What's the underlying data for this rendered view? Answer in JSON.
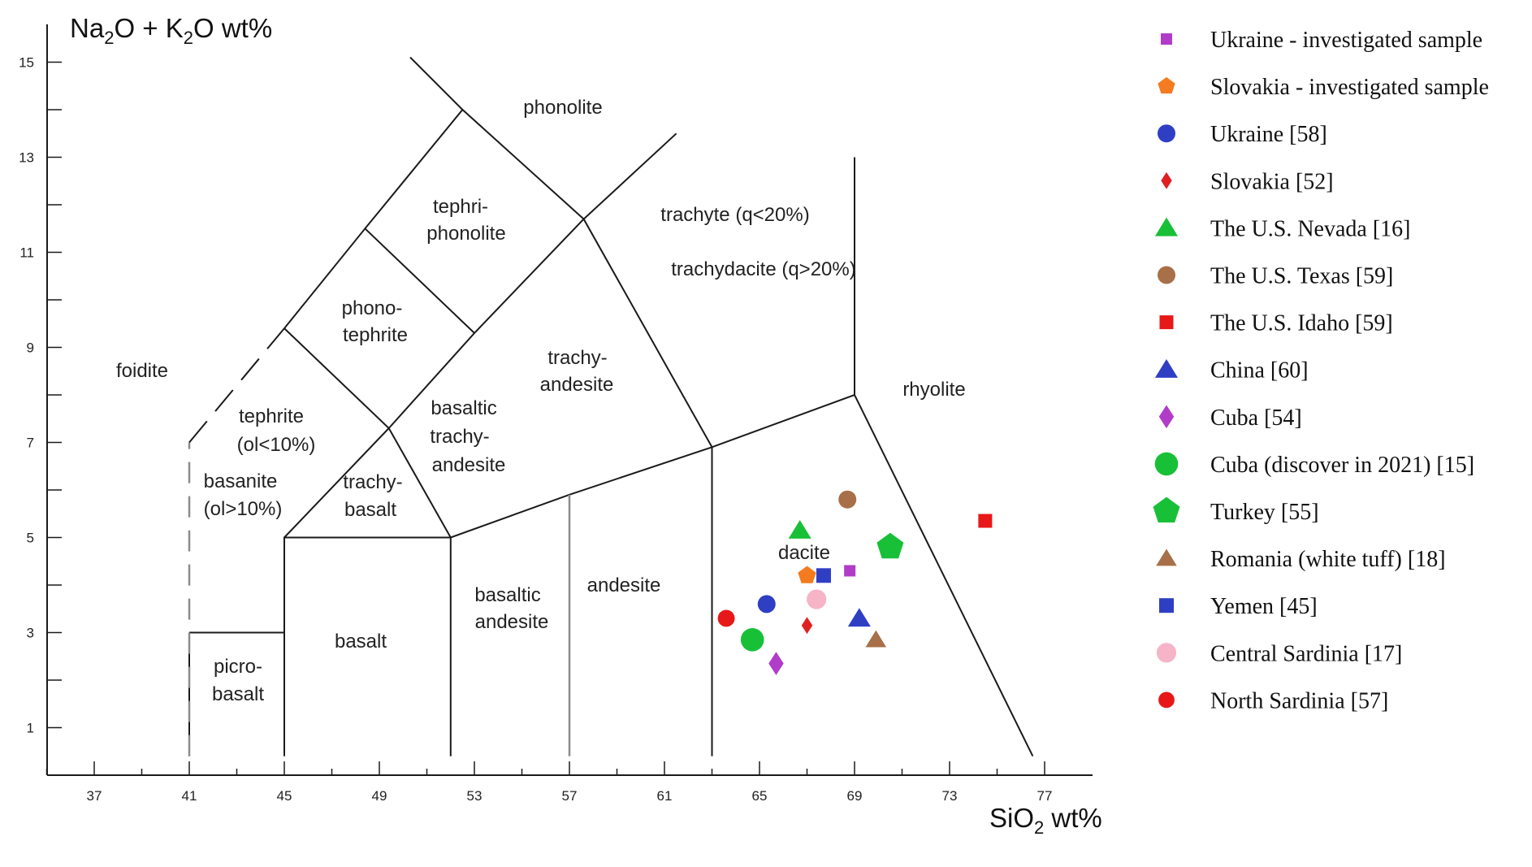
{
  "chart_data": {
    "type": "scatter",
    "title": "",
    "xlabel": "SiO2 wt%",
    "ylabel": "Na2O + K2O wt%",
    "xlim": [
      33,
      80
    ],
    "ylim": [
      0,
      16
    ],
    "x_ticks": [
      "37",
      "41",
      "45",
      "49",
      "53",
      "57",
      "61",
      "65",
      "69",
      "73",
      "77"
    ],
    "y_ticks": [
      "1",
      "3",
      "5",
      "7",
      "9",
      "11",
      "13",
      "15"
    ],
    "axis_title_parts": {
      "y": [
        {
          "t": "Na"
        },
        {
          "t": "2",
          "sub": true
        },
        {
          "t": "O + K"
        },
        {
          "t": "2",
          "sub": true
        },
        {
          "t": "O wt%"
        }
      ],
      "x": [
        {
          "t": "SiO"
        },
        {
          "t": "2",
          "sub": true
        },
        {
          "t": " wt%"
        }
      ]
    },
    "fields": [
      [
        "foidite"
      ],
      [
        "phonolite"
      ],
      [
        "tephri-",
        "phonolite"
      ],
      [
        "phono-",
        "tephrite"
      ],
      [
        "trachyte (q<20%)"
      ],
      [
        "trachydacite (q>20%)"
      ],
      [
        "tephrite",
        "(ol<10%)"
      ],
      [
        "basanite",
        "(ol>10%)"
      ],
      [
        "basaltic",
        "trachy-",
        "andesite"
      ],
      [
        "trachy-",
        "andesite"
      ],
      [
        "trachy-",
        "basalt"
      ],
      [
        "rhyolite"
      ],
      [
        "dacite"
      ],
      [
        "andesite"
      ],
      [
        "basaltic",
        "andesite"
      ],
      [
        "basalt"
      ],
      [
        "picro-",
        "basalt"
      ]
    ],
    "series": [
      {
        "name": "Ukraine -  investigated sample",
        "marker": "square",
        "color": "#b03cc8",
        "points": [
          [
            68.8,
            4.3
          ]
        ]
      },
      {
        "name": "Slovakia - investigated sample",
        "marker": "pentagon",
        "color": "#f47b20",
        "points": [
          [
            67.0,
            4.2
          ]
        ]
      },
      {
        "name": "Ukraine [58]",
        "marker": "circle",
        "color": "#2f3fc4",
        "points": [
          [
            65.3,
            3.6
          ]
        ]
      },
      {
        "name": "Slovakia [52]",
        "marker": "diamond",
        "color": "#e02020",
        "points": [
          [
            67.0,
            3.15
          ]
        ]
      },
      {
        "name": "The U.S. Nevada [16]",
        "marker": "triangle",
        "color": "#18c038",
        "points": [
          [
            66.7,
            5.15
          ]
        ]
      },
      {
        "name": "The U.S. Texas [59]",
        "marker": "circle",
        "color": "#a87048",
        "points": [
          [
            68.7,
            5.8
          ]
        ]
      },
      {
        "name": "The U.S. Idaho [59]",
        "marker": "square",
        "color": "#e81818",
        "points": [
          [
            74.5,
            5.35
          ]
        ]
      },
      {
        "name": "China [60]",
        "marker": "triangle",
        "color": "#2f3fc4",
        "points": [
          [
            69.2,
            3.3
          ]
        ]
      },
      {
        "name": "Cuba [54]",
        "marker": "diamond",
        "color": "#b03cc8",
        "points": [
          [
            65.7,
            2.35
          ]
        ]
      },
      {
        "name": "Cuba (discover in 2021) [15]",
        "marker": "circle",
        "color": "#18c038",
        "points": [
          [
            64.7,
            2.85
          ]
        ]
      },
      {
        "name": "Turkey [55]",
        "marker": "pentagon",
        "color": "#18c038",
        "points": [
          [
            70.5,
            4.8
          ]
        ]
      },
      {
        "name": "Romania (white tuff) [18]",
        "marker": "triangle",
        "color": "#a87048",
        "points": [
          [
            69.9,
            2.85
          ]
        ]
      },
      {
        "name": "Yemen [45]",
        "marker": "square",
        "color": "#2f3fc4",
        "points": [
          [
            67.7,
            4.2
          ]
        ]
      },
      {
        "name": "Central Sardinia [17]",
        "marker": "circle",
        "color": "#f6b4c8",
        "points": [
          [
            67.4,
            3.7
          ]
        ]
      },
      {
        "name": "North Sardinia [57]",
        "marker": "circle",
        "color": "#e81818",
        "points": [
          [
            63.6,
            3.3
          ]
        ]
      }
    ],
    "legend_position": "right"
  }
}
